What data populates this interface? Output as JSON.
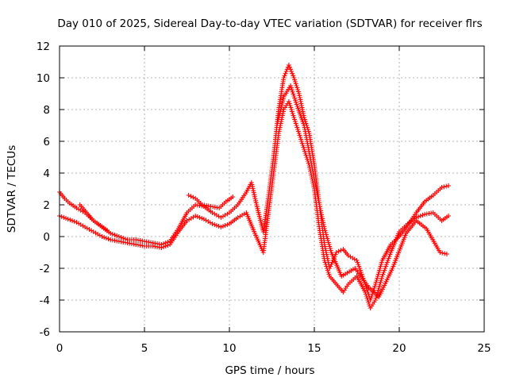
{
  "chart_data": {
    "type": "scatter",
    "title": "Day 010 of 2025, Sidereal Day-to-day VTEC variation (SDTVAR) for receiver flrs",
    "xlabel": "GPS time / hours",
    "ylabel": "SDTVAR / TECUs",
    "xlim": [
      0,
      25
    ],
    "ylim": [
      -6,
      12
    ],
    "xticks": [
      0,
      5,
      10,
      15,
      20,
      25
    ],
    "yticks": [
      -6,
      -4,
      -2,
      0,
      2,
      4,
      6,
      8,
      10,
      12
    ],
    "xtick_labels": [
      "0",
      "5",
      "10",
      "15",
      "20",
      "25"
    ],
    "ytick_labels": [
      "-6",
      "-4",
      "-2",
      "0",
      "2",
      "4",
      "6",
      "8",
      "10",
      "12"
    ],
    "grid": true,
    "marker": "+",
    "marker_color": "#ff0000",
    "series": [
      {
        "x": [
          0,
          0.3,
          0.6,
          1,
          1.5,
          2,
          2.5,
          3,
          3.5,
          4,
          4.5,
          5,
          5.5,
          6,
          6.5,
          7,
          7.5,
          8,
          8.5,
          9,
          9.5,
          10,
          10.5,
          11,
          11.3,
          11.6,
          12,
          12.3,
          12.6,
          12.9,
          13.2,
          13.5,
          13.8,
          14.1,
          14.4,
          14.7,
          15,
          15.3,
          15.6,
          15.9,
          16.3,
          16.7,
          17,
          17.5,
          18,
          18.3,
          18.6,
          19,
          19.5,
          20,
          20.5,
          21,
          21.5,
          22,
          22.5,
          22.9
        ],
        "y": [
          2.8,
          2.4,
          2.1,
          1.8,
          1.5,
          1.0,
          0.6,
          0.2,
          0.0,
          -0.2,
          -0.2,
          -0.3,
          -0.4,
          -0.5,
          -0.3,
          0.5,
          1.5,
          2.0,
          1.9,
          1.5,
          1.2,
          1.5,
          2.0,
          2.8,
          3.4,
          2.0,
          0.3,
          2.5,
          5.0,
          8.0,
          10.0,
          10.8,
          10.0,
          9.0,
          7.5,
          6.5,
          4.5,
          2.0,
          -0.5,
          -2.0,
          -1.0,
          -0.8,
          -1.2,
          -1.5,
          -3.0,
          -4.0,
          -3.0,
          -1.5,
          -0.5,
          0.0,
          0.7,
          1.5,
          2.2,
          2.6,
          3.1,
          3.2
        ]
      },
      {
        "x": [
          0,
          0.5,
          1,
          1.5,
          2,
          2.5,
          3,
          3.5,
          4,
          4.5,
          5,
          5.5,
          6,
          6.5,
          7,
          7.5,
          8,
          8.5,
          9,
          9.5,
          10,
          10.5,
          11,
          11.5,
          12,
          12.3,
          12.6,
          12.9,
          13.2,
          13.5,
          13.8,
          14.1,
          14.4,
          14.7,
          15,
          15.3,
          15.6,
          15.9,
          16.3,
          16.7,
          17,
          17.5,
          18,
          18.3,
          18.6,
          19,
          19.5,
          20,
          20.5,
          21,
          21.5,
          22,
          22.5,
          22.9
        ],
        "y": [
          1.3,
          1.1,
          0.9,
          0.6,
          0.3,
          0.0,
          -0.2,
          -0.3,
          -0.4,
          -0.5,
          -0.6,
          -0.6,
          -0.7,
          -0.5,
          0.3,
          1.0,
          1.3,
          1.1,
          0.8,
          0.6,
          0.8,
          1.2,
          1.5,
          0.2,
          -1.0,
          1.5,
          4.0,
          6.5,
          8.0,
          8.5,
          7.5,
          6.5,
          5.5,
          4.5,
          3.0,
          0.5,
          -1.5,
          -2.5,
          -3.0,
          -3.5,
          -3.0,
          -2.5,
          -3.5,
          -4.5,
          -4.0,
          -2.5,
          -1.0,
          0.3,
          0.8,
          1.2,
          1.4,
          1.5,
          1.0,
          1.3
        ]
      },
      {
        "x": [
          1.2,
          1.6,
          2.0,
          2.4,
          2.8,
          7.6,
          8.0,
          8.4,
          9.4,
          9.8,
          10.2,
          12.8,
          13.2,
          13.6,
          14.0,
          14.4,
          15.2,
          15.6,
          16.0,
          16.6,
          17.4,
          18.2,
          18.8,
          19.6,
          20.4,
          21.0,
          21.6,
          22.4,
          22.8
        ],
        "y": [
          2.0,
          1.5,
          1.0,
          0.7,
          0.4,
          2.6,
          2.4,
          2.0,
          1.8,
          2.2,
          2.5,
          7.0,
          8.8,
          9.5,
          8.2,
          7.0,
          2.5,
          0.5,
          -1.0,
          -2.5,
          -2.0,
          -3.2,
          -3.8,
          -2.0,
          0.2,
          1.0,
          0.5,
          -1.0,
          -1.1
        ]
      }
    ]
  }
}
